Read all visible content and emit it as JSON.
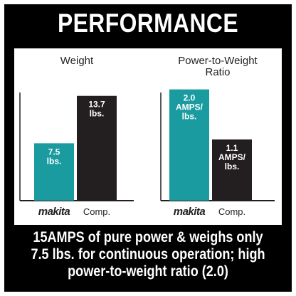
{
  "title": "PERFORMANCE",
  "colors": {
    "makita": "#1a9ba0",
    "comp": "#231f20",
    "background": "#000000",
    "panel": "#ffffff"
  },
  "chart_data": [
    {
      "type": "bar",
      "title": "Weight",
      "title_lines": [
        "Weight"
      ],
      "categories": [
        "makita",
        "Comp."
      ],
      "values": [
        7.5,
        13.7
      ],
      "data_labels": [
        [
          "7.5",
          "lbs."
        ],
        [
          "13.7",
          "lbs."
        ]
      ],
      "ylim": [
        0,
        16
      ],
      "grid": false,
      "colors": [
        "#1a9ba0",
        "#231f20"
      ]
    },
    {
      "type": "bar",
      "title": "Power-to-Weight Ratio",
      "title_lines": [
        "Power-to-Weight",
        "Ratio"
      ],
      "categories": [
        "makita",
        "Comp."
      ],
      "values": [
        2.0,
        1.1
      ],
      "data_labels": [
        [
          "2.0",
          "AMPS/",
          "lbs."
        ],
        [
          "1.1",
          "AMPS/",
          "lbs."
        ]
      ],
      "ylim": [
        0,
        2.2
      ],
      "grid": false,
      "colors": [
        "#1a9ba0",
        "#231f20"
      ]
    }
  ],
  "caption_lines": [
    "15AMPS of pure power & weighs only",
    "7.5 lbs. for continuous operation; high",
    "power-to-weight ratio (2.0)"
  ]
}
